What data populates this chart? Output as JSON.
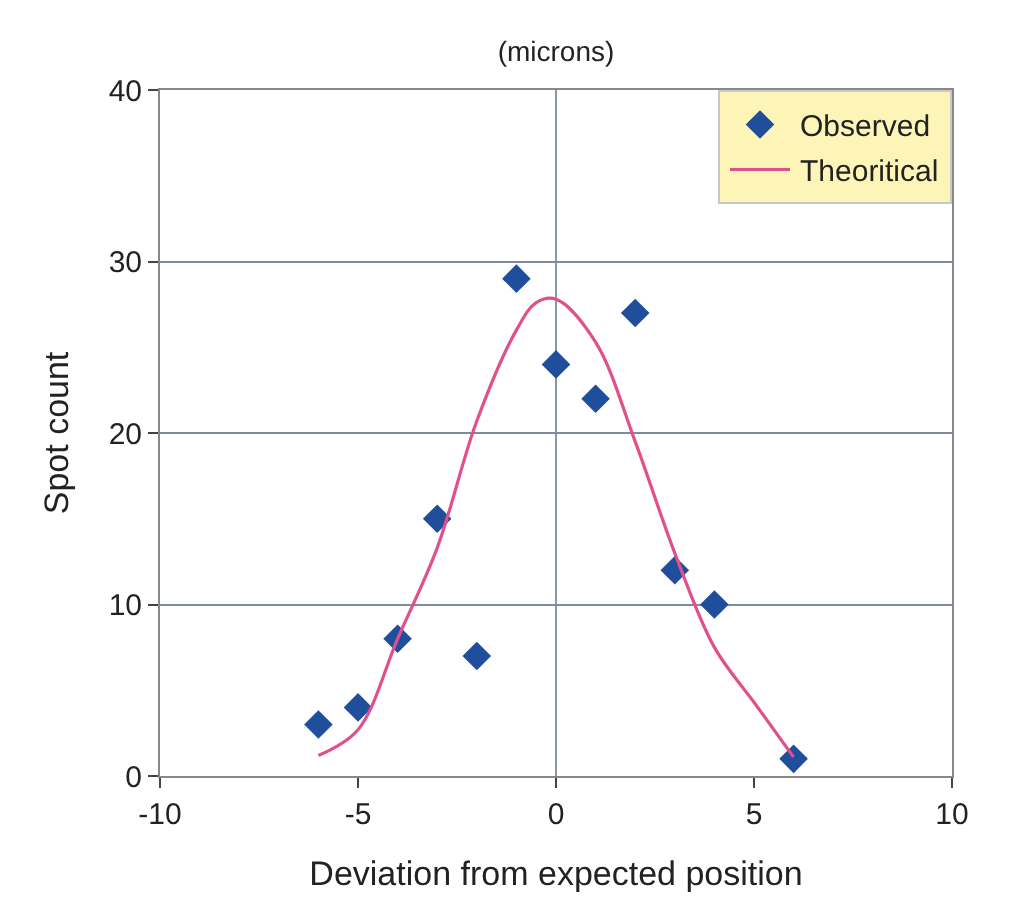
{
  "chart_data": {
    "type": "scatter",
    "title": "(microns)",
    "xlabel": "Deviation from expected position",
    "ylabel": "Spot count",
    "xlim": [
      -10,
      10
    ],
    "xticks": [
      -10,
      -5,
      0,
      5,
      10
    ],
    "ylim": [
      0,
      40
    ],
    "yticks": [
      0,
      10,
      20,
      30,
      40
    ],
    "grid": "y",
    "legend": "top right",
    "ref_lines": [
      {
        "axis": "x",
        "value": 0,
        "color": "#8a96a8"
      }
    ],
    "series": [
      {
        "name": "Observed",
        "marker": "diamond",
        "color": "#1f4e9c",
        "x": [
          -6,
          -5,
          -4,
          -3,
          -2,
          -1,
          0,
          1,
          2,
          3,
          4,
          6
        ],
        "values": [
          3,
          4,
          8,
          15,
          7,
          29,
          24,
          22,
          27,
          12,
          10,
          1
        ]
      },
      {
        "name": "Theoritical",
        "type": "line",
        "marker": "none",
        "color": "#e0508a",
        "x": [
          -6,
          -5,
          -4,
          -3,
          -2,
          -1,
          -0.5,
          0,
          1,
          2,
          3,
          4,
          5,
          6
        ],
        "values": [
          1.2,
          2.7,
          8,
          13.3,
          20.7,
          26,
          27.6,
          27.8,
          25.3,
          19.5,
          13,
          7.5,
          4.3,
          1.1
        ]
      }
    ]
  }
}
